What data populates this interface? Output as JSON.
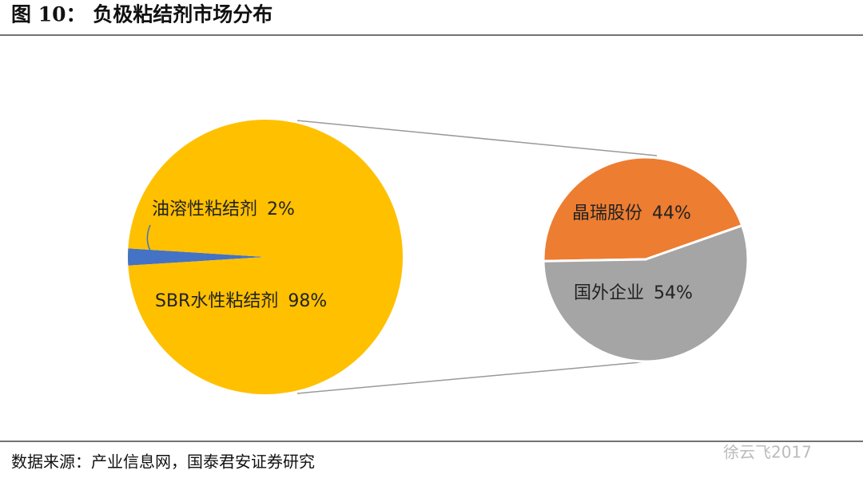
{
  "title": "图 10： 负极粘结剂市场分布",
  "source": "数据来源：产业信息网，国泰君安证券研究",
  "watermark": "徐云飞2017",
  "chart_data": [
    {
      "type": "pie",
      "categories": [
        "油溶性粘结剂",
        "SBR水性粘结剂"
      ],
      "values": [
        2,
        98
      ],
      "value_labels": [
        "2%",
        "98%"
      ],
      "colors": [
        "#4472c4",
        "#ffc000"
      ]
    },
    {
      "type": "pie",
      "categories": [
        "晶瑞股份",
        "国外企业"
      ],
      "values": [
        44,
        54
      ],
      "value_labels": [
        "44%",
        "54%"
      ],
      "colors": [
        "#ed7d31",
        "#a5a5a5"
      ]
    }
  ]
}
